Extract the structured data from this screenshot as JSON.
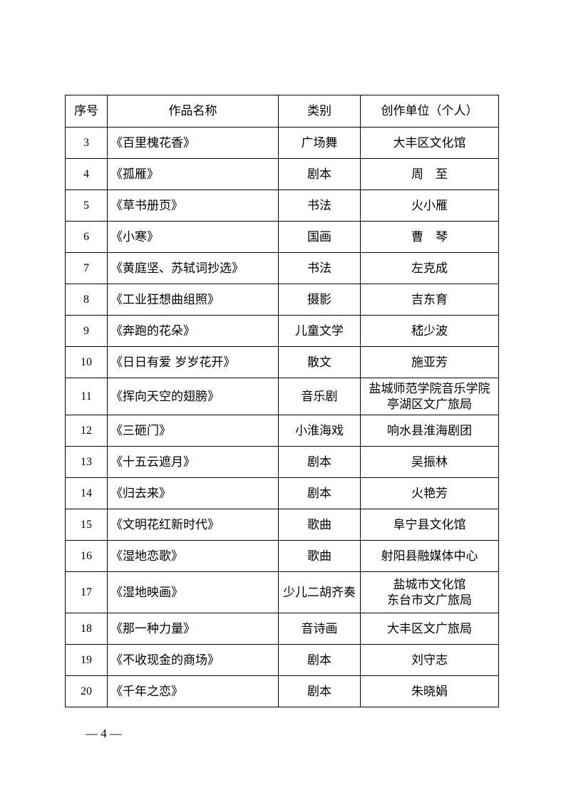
{
  "table": {
    "headers": [
      "序号",
      "作品名称",
      "类别",
      "创作单位（个人）"
    ],
    "rows": [
      {
        "no": "3",
        "title": "《百里槐花香》",
        "category": "广场舞",
        "creator": [
          "大丰区文化馆"
        ]
      },
      {
        "no": "4",
        "title": "《孤雁》",
        "category": "剧本",
        "creator": [
          "周　至"
        ]
      },
      {
        "no": "5",
        "title": "《草书册页》",
        "category": "书法",
        "creator": [
          "火小雁"
        ]
      },
      {
        "no": "6",
        "title": "《小寒》",
        "category": "国画",
        "creator": [
          "曹　琴"
        ]
      },
      {
        "no": "7",
        "title": "《黄庭坚、苏轼词抄选》",
        "category": "书法",
        "creator": [
          "左克成"
        ]
      },
      {
        "no": "8",
        "title": "《工业狂想曲组照》",
        "category": "摄影",
        "creator": [
          "吉东育"
        ]
      },
      {
        "no": "9",
        "title": "《奔跑的花朵》",
        "category": "儿童文学",
        "creator": [
          "嵇少波"
        ]
      },
      {
        "no": "10",
        "title": "《日日有爱 岁岁花开》",
        "category": "散文",
        "creator": [
          "施亚芳"
        ]
      },
      {
        "no": "11",
        "title": "《挥向天空的翅膀》",
        "category": "音乐剧",
        "creator": [
          "盐城师范学院音乐学院",
          "亭湖区文广旅局"
        ]
      },
      {
        "no": "12",
        "title": "《三砸门》",
        "category": "小淮海戏",
        "creator": [
          "响水县淮海剧团"
        ]
      },
      {
        "no": "13",
        "title": "《十五云遮月》",
        "category": "剧本",
        "creator": [
          "吴振林"
        ]
      },
      {
        "no": "14",
        "title": "《归去来》",
        "category": "剧本",
        "creator": [
          "火艳芳"
        ]
      },
      {
        "no": "15",
        "title": "《文明花红新时代》",
        "category": "歌曲",
        "creator": [
          "阜宁县文化馆"
        ]
      },
      {
        "no": "16",
        "title": "《湿地恋歌》",
        "category": "歌曲",
        "creator": [
          "射阳县融媒体中心"
        ]
      },
      {
        "no": "17",
        "title": "《湿地映画》",
        "category": "少儿二胡齐奏",
        "creator": [
          "盐城市文化馆",
          "东台市文广旅局"
        ]
      },
      {
        "no": "18",
        "title": "《那一种力量》",
        "category": "音诗画",
        "creator": [
          "大丰区文广旅局"
        ]
      },
      {
        "no": "19",
        "title": "《不收现金的商场》",
        "category": "剧本",
        "creator": [
          "刘守志"
        ]
      },
      {
        "no": "20",
        "title": "《千年之恋》",
        "category": "剧本",
        "creator": [
          "朱晓娟"
        ]
      }
    ]
  },
  "footer": {
    "page_number": "— 4 —"
  }
}
